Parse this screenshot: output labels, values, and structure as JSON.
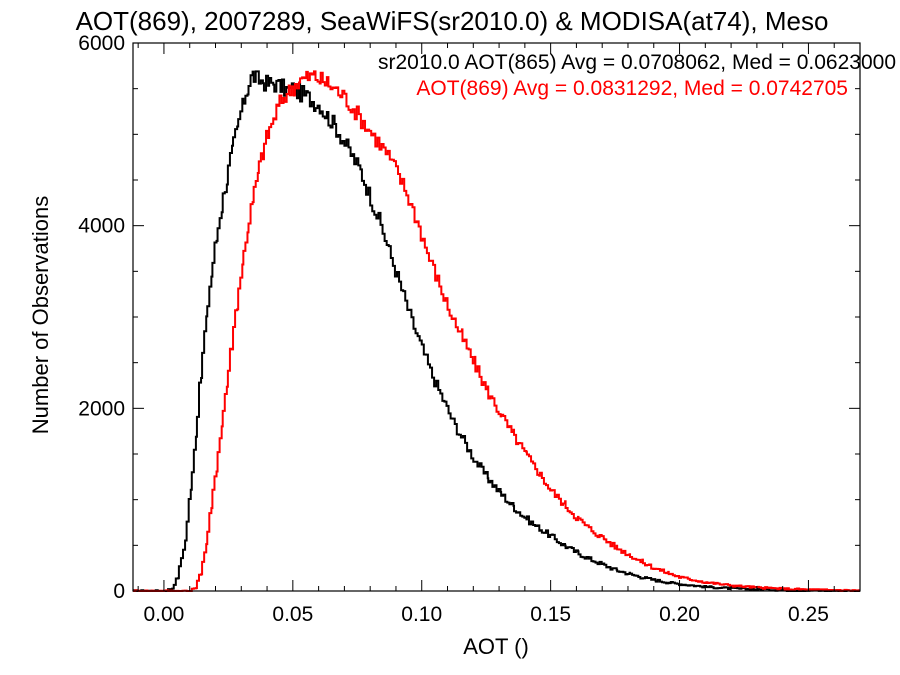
{
  "chart_data": {
    "type": "line",
    "title": "AOT(869), 2007289, SeaWiFS(sr2010.0) & MODISA(at74), Meso",
    "xlabel": "AOT ()",
    "ylabel": "Number of Observations",
    "xlim": [
      -0.012,
      0.27
    ],
    "ylim": [
      0,
      6000
    ],
    "x_ticks": [
      0.0,
      0.05,
      0.1,
      0.15,
      0.2,
      0.25
    ],
    "x_tick_labels": [
      "0.00",
      "0.05",
      "0.10",
      "0.15",
      "0.20",
      "0.25"
    ],
    "y_ticks": [
      0,
      2000,
      4000,
      6000
    ],
    "y_tick_labels": [
      "0",
      "2000",
      "4000",
      "6000"
    ],
    "grid": false,
    "legend_placement": "top-right",
    "series": [
      {
        "name": "sr2010.0 AOT(865) Avg = 0.0708062, Med = 0.0623000",
        "color": "#000000",
        "points": [
          [
            -0.012,
            0
          ],
          [
            0.0,
            0
          ],
          [
            0.003,
            30
          ],
          [
            0.005,
            150
          ],
          [
            0.008,
            550
          ],
          [
            0.01,
            1100
          ],
          [
            0.012,
            1700
          ],
          [
            0.014,
            2350
          ],
          [
            0.016,
            2950
          ],
          [
            0.018,
            3450
          ],
          [
            0.02,
            3850
          ],
          [
            0.022,
            4200
          ],
          [
            0.024,
            4500
          ],
          [
            0.026,
            4800
          ],
          [
            0.028,
            5050
          ],
          [
            0.03,
            5300
          ],
          [
            0.032,
            5500
          ],
          [
            0.034,
            5650
          ],
          [
            0.036,
            5600
          ],
          [
            0.038,
            5580
          ],
          [
            0.04,
            5550
          ],
          [
            0.042,
            5560
          ],
          [
            0.045,
            5520
          ],
          [
            0.048,
            5480
          ],
          [
            0.05,
            5500
          ],
          [
            0.052,
            5460
          ],
          [
            0.055,
            5420
          ],
          [
            0.058,
            5350
          ],
          [
            0.06,
            5320
          ],
          [
            0.063,
            5200
          ],
          [
            0.066,
            5100
          ],
          [
            0.07,
            4900
          ],
          [
            0.073,
            4750
          ],
          [
            0.076,
            4600
          ],
          [
            0.08,
            4300
          ],
          [
            0.084,
            4000
          ],
          [
            0.088,
            3650
          ],
          [
            0.092,
            3300
          ],
          [
            0.096,
            2950
          ],
          [
            0.1,
            2650
          ],
          [
            0.104,
            2350
          ],
          [
            0.108,
            2100
          ],
          [
            0.112,
            1850
          ],
          [
            0.116,
            1650
          ],
          [
            0.12,
            1450
          ],
          [
            0.125,
            1250
          ],
          [
            0.13,
            1080
          ],
          [
            0.135,
            930
          ],
          [
            0.14,
            800
          ],
          [
            0.145,
            690
          ],
          [
            0.15,
            600
          ],
          [
            0.155,
            500
          ],
          [
            0.16,
            420
          ],
          [
            0.165,
            350
          ],
          [
            0.17,
            290
          ],
          [
            0.175,
            230
          ],
          [
            0.18,
            190
          ],
          [
            0.185,
            150
          ],
          [
            0.19,
            120
          ],
          [
            0.195,
            95
          ],
          [
            0.2,
            75
          ],
          [
            0.21,
            45
          ],
          [
            0.22,
            28
          ],
          [
            0.23,
            18
          ],
          [
            0.24,
            10
          ],
          [
            0.25,
            6
          ],
          [
            0.26,
            4
          ],
          [
            0.27,
            2
          ]
        ]
      },
      {
        "name": "AOT(869) Avg = 0.0831292, Med = 0.0742705",
        "color": "#ff0000",
        "points": [
          [
            -0.012,
            0
          ],
          [
            0.01,
            0
          ],
          [
            0.012,
            40
          ],
          [
            0.014,
            200
          ],
          [
            0.016,
            500
          ],
          [
            0.018,
            900
          ],
          [
            0.02,
            1350
          ],
          [
            0.022,
            1800
          ],
          [
            0.024,
            2250
          ],
          [
            0.026,
            2700
          ],
          [
            0.028,
            3150
          ],
          [
            0.03,
            3550
          ],
          [
            0.032,
            3950
          ],
          [
            0.034,
            4250
          ],
          [
            0.036,
            4550
          ],
          [
            0.038,
            4800
          ],
          [
            0.04,
            5000
          ],
          [
            0.042,
            5150
          ],
          [
            0.044,
            5300
          ],
          [
            0.046,
            5400
          ],
          [
            0.048,
            5470
          ],
          [
            0.05,
            5520
          ],
          [
            0.052,
            5580
          ],
          [
            0.055,
            5620
          ],
          [
            0.058,
            5640
          ],
          [
            0.06,
            5600
          ],
          [
            0.063,
            5560
          ],
          [
            0.066,
            5500
          ],
          [
            0.07,
            5400
          ],
          [
            0.074,
            5250
          ],
          [
            0.078,
            5100
          ],
          [
            0.082,
            4950
          ],
          [
            0.086,
            4800
          ],
          [
            0.09,
            4600
          ],
          [
            0.094,
            4350
          ],
          [
            0.098,
            4050
          ],
          [
            0.102,
            3700
          ],
          [
            0.106,
            3400
          ],
          [
            0.11,
            3100
          ],
          [
            0.115,
            2800
          ],
          [
            0.12,
            2500
          ],
          [
            0.125,
            2200
          ],
          [
            0.13,
            1950
          ],
          [
            0.135,
            1720
          ],
          [
            0.14,
            1500
          ],
          [
            0.145,
            1300
          ],
          [
            0.15,
            1100
          ],
          [
            0.155,
            950
          ],
          [
            0.16,
            800
          ],
          [
            0.165,
            680
          ],
          [
            0.17,
            580
          ],
          [
            0.175,
            480
          ],
          [
            0.18,
            400
          ],
          [
            0.185,
            320
          ],
          [
            0.19,
            250
          ],
          [
            0.195,
            200
          ],
          [
            0.2,
            150
          ],
          [
            0.21,
            95
          ],
          [
            0.22,
            60
          ],
          [
            0.23,
            38
          ],
          [
            0.24,
            24
          ],
          [
            0.25,
            15
          ],
          [
            0.26,
            9
          ],
          [
            0.27,
            5
          ]
        ]
      }
    ]
  }
}
